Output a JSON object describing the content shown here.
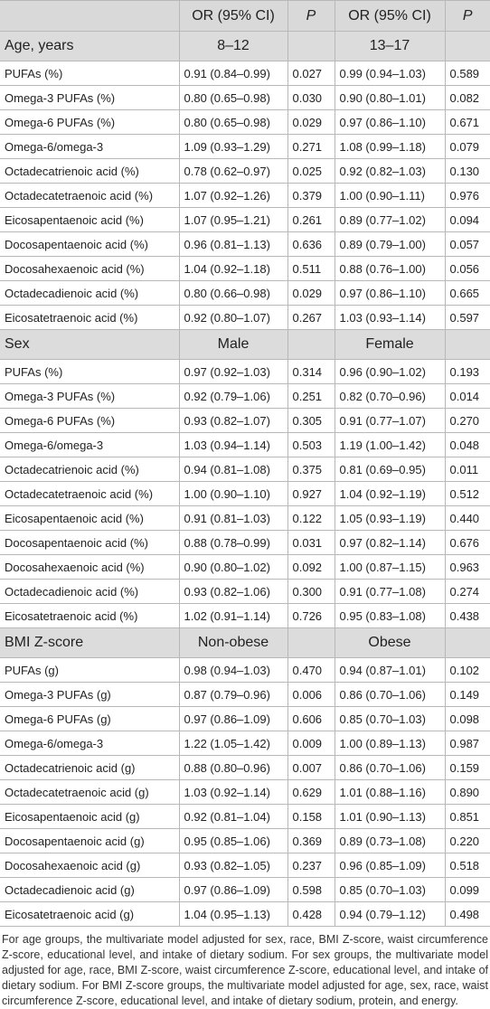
{
  "header": {
    "columns": [
      "OR (95% CI)",
      "P",
      "OR (95% CI)",
      "P"
    ]
  },
  "sections": [
    {
      "label": "Age, years",
      "groups": [
        "8–12",
        "13–17"
      ],
      "rows": [
        [
          "PUFAs (%)",
          "0.91 (0.84–0.99)",
          "0.027",
          "0.99 (0.94–1.03)",
          "0.589"
        ],
        [
          "Omega-3 PUFAs (%)",
          "0.80 (0.65–0.98)",
          "0.030",
          "0.90 (0.80–1.01)",
          "0.082"
        ],
        [
          "Omega-6 PUFAs (%)",
          "0.80 (0.65–0.98)",
          "0.029",
          "0.97 (0.86–1.10)",
          "0.671"
        ],
        [
          "Omega-6/omega-3",
          "1.09 (0.93–1.29)",
          "0.271",
          "1.08 (0.99–1.18)",
          "0.079"
        ],
        [
          "Octadecatrienoic acid (%)",
          "0.78 (0.62–0.97)",
          "0.025",
          "0.92 (0.82–1.03)",
          "0.130"
        ],
        [
          "Octadecatetraenoic acid (%)",
          "1.07 (0.92–1.26)",
          "0.379",
          "1.00 (0.90–1.11)",
          "0.976"
        ],
        [
          "Eicosapentaenoic acid (%)",
          "1.07 (0.95–1.21)",
          "0.261",
          "0.89 (0.77–1.02)",
          "0.094"
        ],
        [
          "Docosapentaenoic acid (%)",
          "0.96 (0.81–1.13)",
          "0.636",
          "0.89 (0.79–1.00)",
          "0.057"
        ],
        [
          "Docosahexaenoic acid (%)",
          "1.04 (0.92–1.18)",
          "0.511",
          "0.88 (0.76–1.00)",
          "0.056"
        ],
        [
          "Octadecadienoic acid (%)",
          "0.80 (0.66–0.98)",
          "0.029",
          "0.97 (0.86–1.10)",
          "0.665"
        ],
        [
          "Eicosatetraenoic acid (%)",
          "0.92 (0.80–1.07)",
          "0.267",
          "1.03 (0.93–1.14)",
          "0.597"
        ]
      ]
    },
    {
      "label": "Sex",
      "groups": [
        "Male",
        "Female"
      ],
      "rows": [
        [
          "PUFAs (%)",
          "0.97 (0.92–1.03)",
          "0.314",
          "0.96 (0.90–1.02)",
          "0.193"
        ],
        [
          "Omega-3 PUFAs (%)",
          "0.92 (0.79–1.06)",
          "0.251",
          "0.82 (0.70–0.96)",
          "0.014"
        ],
        [
          "Omega-6 PUFAs (%)",
          "0.93 (0.82–1.07)",
          "0.305",
          "0.91 (0.77–1.07)",
          "0.270"
        ],
        [
          "Omega-6/omega-3",
          "1.03 (0.94–1.14)",
          "0.503",
          "1.19 (1.00–1.42)",
          "0.048"
        ],
        [
          "Octadecatrienoic acid (%)",
          "0.94 (0.81–1.08)",
          "0.375",
          "0.81 (0.69–0.95)",
          "0.011"
        ],
        [
          "Octadecatetraenoic acid (%)",
          "1.00 (0.90–1.10)",
          "0.927",
          "1.04 (0.92–1.19)",
          "0.512"
        ],
        [
          "Eicosapentaenoic acid (%)",
          "0.91 (0.81–1.03)",
          "0.122",
          "1.05 (0.93–1.19)",
          "0.440"
        ],
        [
          "Docosapentaenoic acid (%)",
          "0.88 (0.78–0.99)",
          "0.031",
          "0.97 (0.82–1.14)",
          "0.676"
        ],
        [
          "Docosahexaenoic acid (%)",
          "0.90 (0.80–1.02)",
          "0.092",
          "1.00 (0.87–1.15)",
          "0.963"
        ],
        [
          "Octadecadienoic acid (%)",
          "0.93 (0.82–1.06)",
          "0.300",
          "0.91 (0.77–1.08)",
          "0.274"
        ],
        [
          "Eicosatetraenoic acid (%)",
          "1.02 (0.91–1.14)",
          "0.726",
          "0.95 (0.83–1.08)",
          "0.438"
        ]
      ]
    },
    {
      "label": "BMI Z-score",
      "groups": [
        "Non-obese",
        "Obese"
      ],
      "rows": [
        [
          "PUFAs (g)",
          "0.98 (0.94–1.03)",
          "0.470",
          "0.94 (0.87–1.01)",
          "0.102"
        ],
        [
          "Omega-3 PUFAs (g)",
          "0.87 (0.79–0.96)",
          "0.006",
          "0.86 (0.70–1.06)",
          "0.149"
        ],
        [
          "Omega-6 PUFAs (g)",
          "0.97 (0.86–1.09)",
          "0.606",
          "0.85 (0.70–1.03)",
          "0.098"
        ],
        [
          "Omega-6/omega-3",
          "1.22 (1.05–1.42)",
          "0.009",
          "1.00 (0.89–1.13)",
          "0.987"
        ],
        [
          "Octadecatrienoic acid (g)",
          "0.88 (0.80–0.96)",
          "0.007",
          "0.86 (0.70–1.06)",
          "0.159"
        ],
        [
          "Octadecatetraenoic acid (g)",
          "1.03 (0.92–1.14)",
          "0.629",
          "1.01 (0.88–1.16)",
          "0.890"
        ],
        [
          "Eicosapentaenoic acid (g)",
          "0.92 (0.81–1.04)",
          "0.158",
          "1.01 (0.90–1.13)",
          "0.851"
        ],
        [
          "Docosapentaenoic acid (g)",
          "0.95 (0.85–1.06)",
          "0.369",
          "0.89 (0.73–1.08)",
          "0.220"
        ],
        [
          "Docosahexaenoic acid (g)",
          "0.93 (0.82–1.05)",
          "0.237",
          "0.96 (0.85–1.09)",
          "0.518"
        ],
        [
          "Octadecadienoic acid (g)",
          "0.97 (0.86–1.09)",
          "0.598",
          "0.85 (0.70–1.03)",
          "0.099"
        ],
        [
          "Eicosatetraenoic acid (g)",
          "1.04 (0.95–1.13)",
          "0.428",
          "0.94 (0.79–1.12)",
          "0.498"
        ]
      ]
    }
  ],
  "footnote": "For age groups, the multivariate model adjusted for sex, race, BMI Z-score, waist circumference Z-score, educational level, and intake of dietary sodium. For sex groups, the multivariate model adjusted for age, race, BMI Z-score, waist circumference Z-score, educational level, and intake of dietary sodium. For BMI Z-score groups, the multivariate model adjusted for age, sex, race, waist circumference Z-score, educational level, and intake of dietary sodium, protein, and energy."
}
